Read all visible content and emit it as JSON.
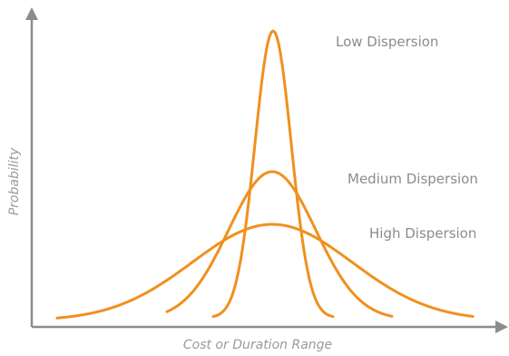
{
  "chart_data": {
    "type": "line",
    "title": "",
    "xlabel": "Cost or Duration Range",
    "ylabel": "Probability",
    "grid": false,
    "legend": "none",
    "series": [
      {
        "name": "Low Dispersion",
        "shape": "normal-curve",
        "peak": "highest",
        "spread": "narrow",
        "color": "#f0901e"
      },
      {
        "name": "Medium Dispersion",
        "shape": "normal-curve",
        "peak": "medium",
        "spread": "medium",
        "color": "#f0901e"
      },
      {
        "name": "High Dispersion",
        "shape": "normal-curve",
        "peak": "lowest",
        "spread": "wide",
        "color": "#f0901e"
      }
    ]
  },
  "colors": {
    "curve": "#f0901e",
    "axis": "#8c8c8c",
    "text": "#8c8c8c"
  },
  "icons": {
    "x_axis_end": "arrow-right-icon",
    "y_axis_end": "arrow-up-icon"
  }
}
